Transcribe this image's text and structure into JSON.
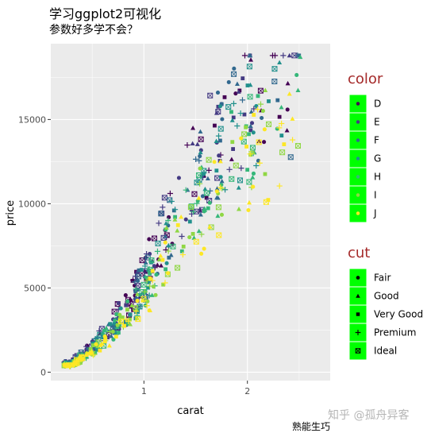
{
  "title": "学习ggplot2可视化",
  "subtitle": "参数好多学不会？",
  "footnote": "熟能生巧",
  "watermark": "知乎 @孤舟异客",
  "colors": {
    "panel_bg": "#ebebeb",
    "grid_major": "#ffffff",
    "legend_key_bg": "#00ff00",
    "legend_title": "#a52a2a",
    "palette": [
      "#440154",
      "#443a83",
      "#31688e",
      "#21908c",
      "#35b779",
      "#8fd744",
      "#fde725"
    ]
  },
  "chart_data": {
    "type": "scatter",
    "title": "",
    "xlabel": "carat",
    "ylabel": "price",
    "xlim": [
      0.1,
      2.8
    ],
    "ylim": [
      -500,
      19500
    ],
    "x_ticks": [
      1,
      2
    ],
    "y_ticks": [
      0,
      5000,
      10000,
      15000
    ],
    "y_tick_labels": [
      "0",
      "5000",
      "10000",
      "15000"
    ],
    "grid": true,
    "legend_position": "right",
    "legends": [
      {
        "title": "color",
        "entries": [
          "D",
          "E",
          "F",
          "G",
          "H",
          "I",
          "J"
        ]
      },
      {
        "title": "cut",
        "entries": [
          "Fair",
          "Good",
          "Very Good",
          "Premium",
          "Ideal"
        ],
        "shapes": [
          "circle",
          "triangle",
          "square",
          "plus",
          "square-x"
        ]
      }
    ],
    "trend_points": [
      [
        0.3,
        500
      ],
      [
        0.5,
        1500
      ],
      [
        0.7,
        2800
      ],
      [
        0.9,
        4200
      ],
      [
        1.0,
        5500
      ],
      [
        1.2,
        8000
      ],
      [
        1.5,
        11000
      ],
      [
        1.7,
        13500
      ],
      [
        2.0,
        15500
      ],
      [
        2.3,
        17000
      ]
    ],
    "series": [
      {
        "name": "D",
        "offset": 0.1
      },
      {
        "name": "E",
        "offset": 0.05
      },
      {
        "name": "F",
        "offset": 0.0
      },
      {
        "name": "G",
        "offset": -0.05
      },
      {
        "name": "H",
        "offset": -0.1
      },
      {
        "name": "I",
        "offset": -0.15
      },
      {
        "name": "J",
        "offset": -0.22
      }
    ]
  }
}
